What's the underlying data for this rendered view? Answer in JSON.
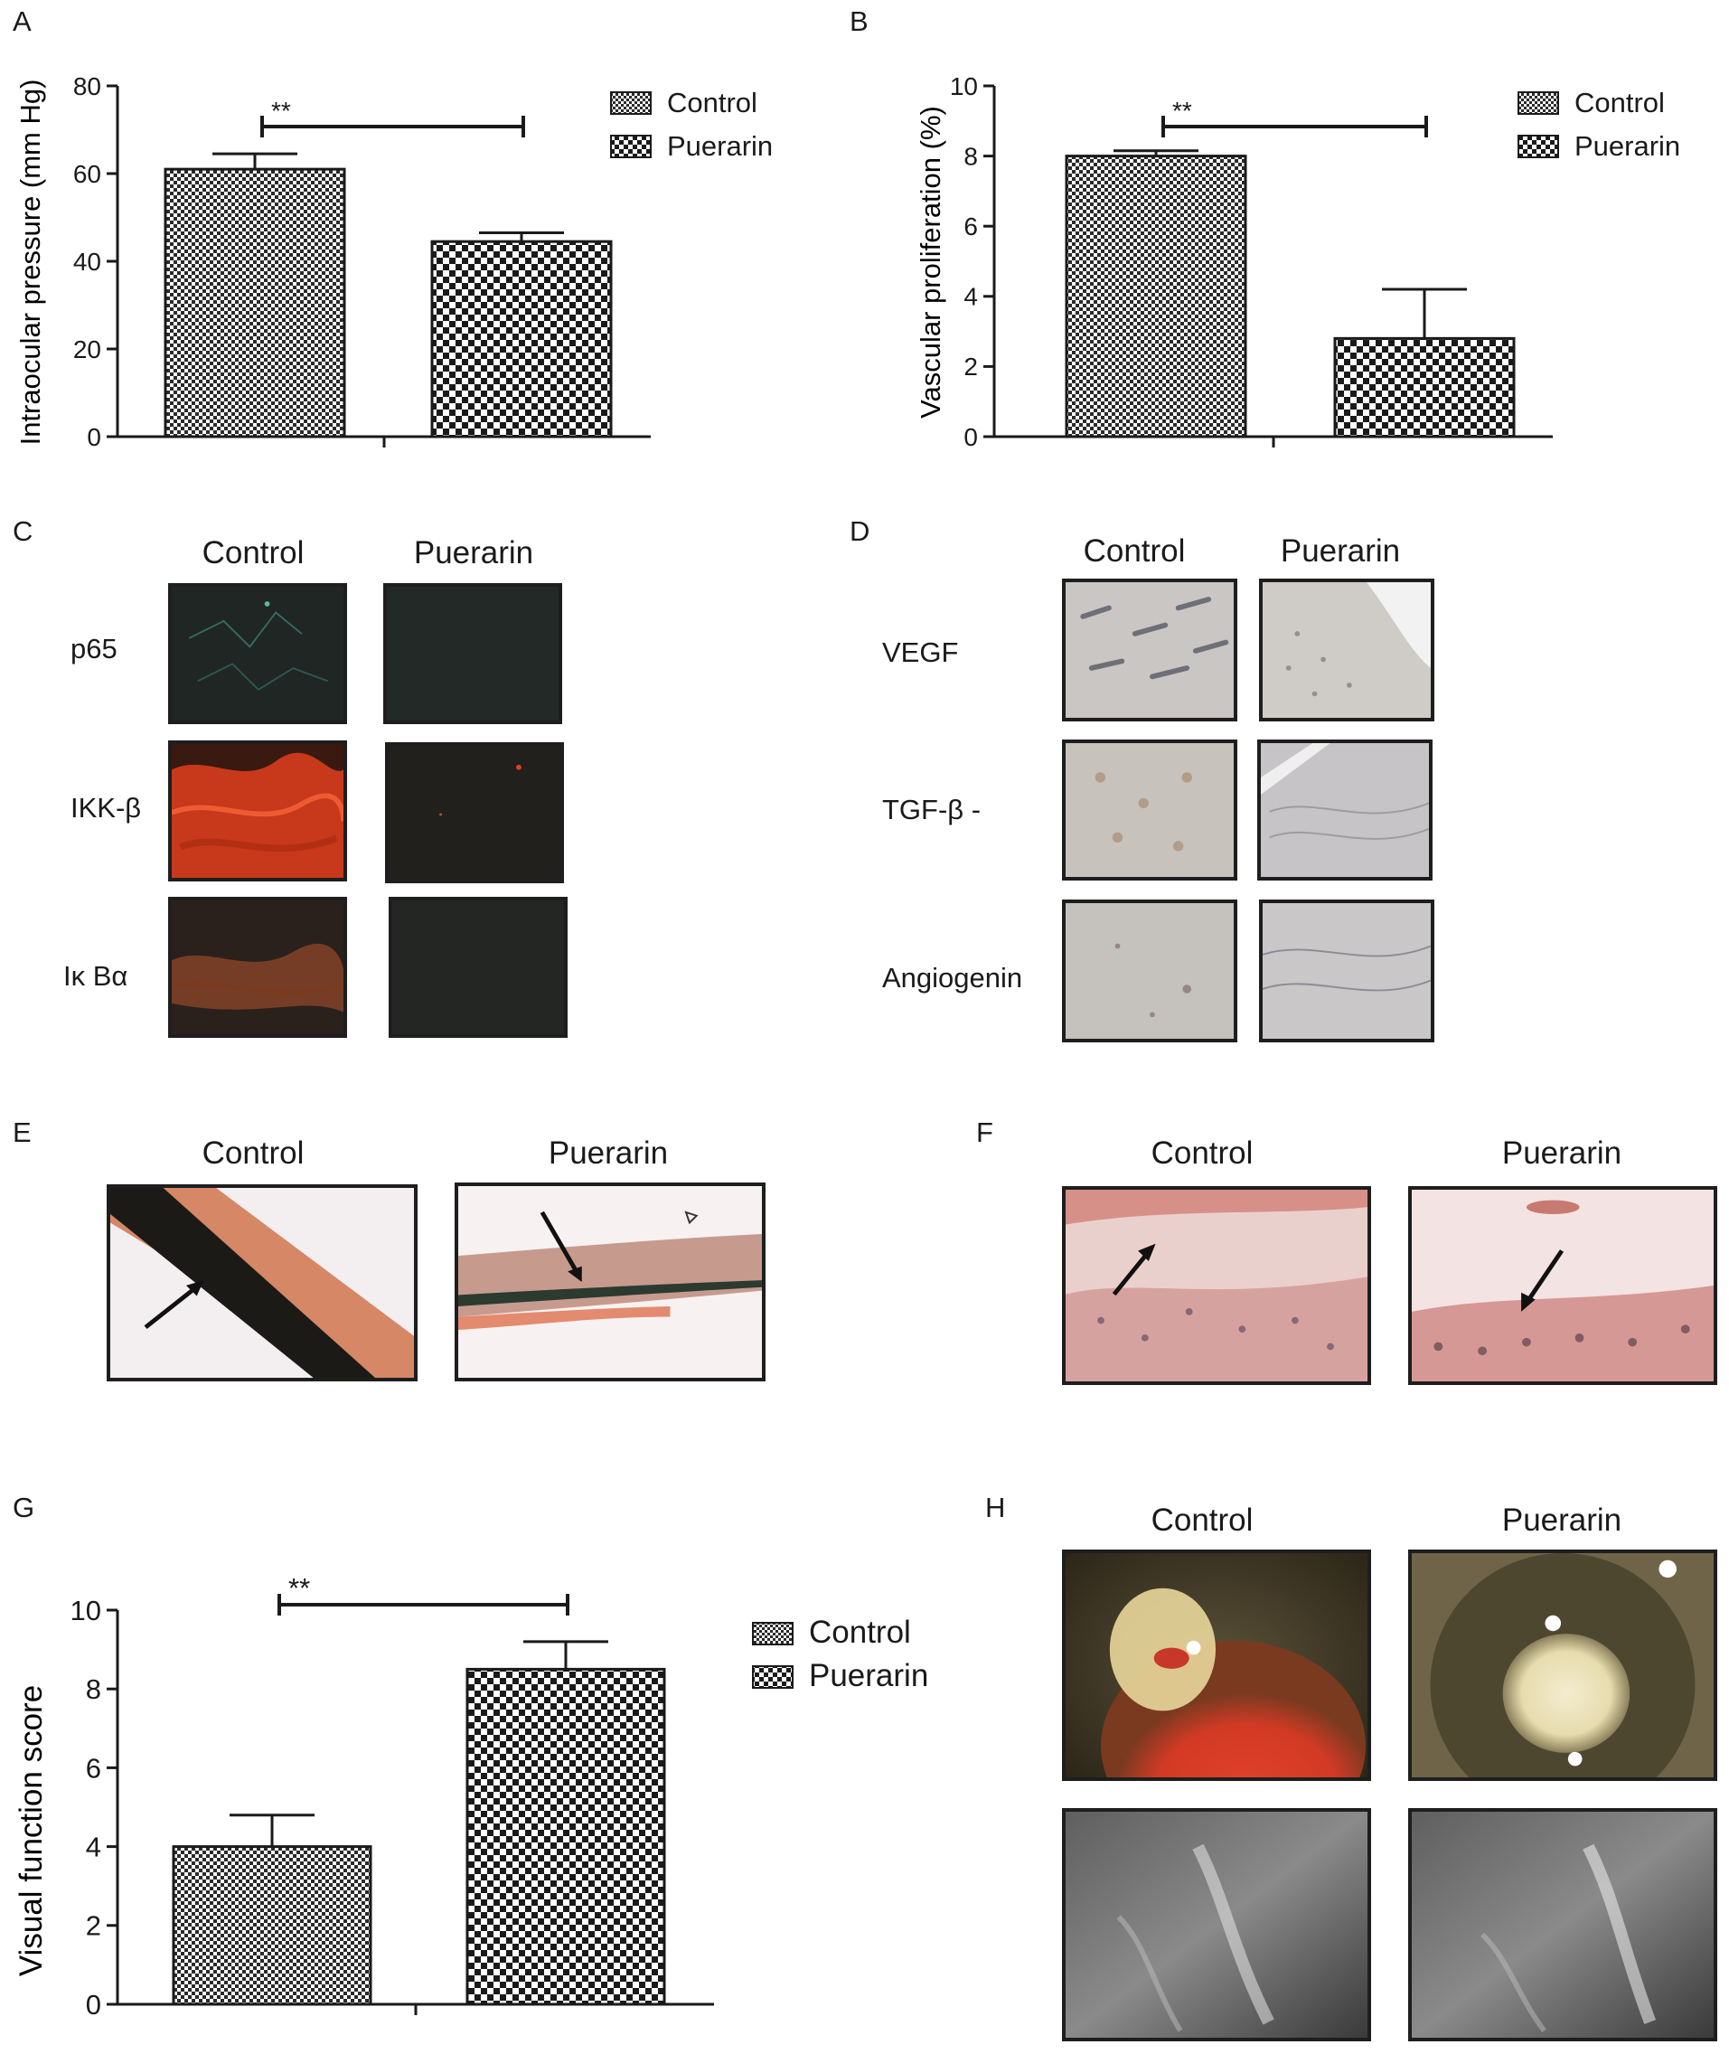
{
  "panels": {
    "A": {
      "letter": "A"
    },
    "B": {
      "letter": "B"
    },
    "C": {
      "letter": "C",
      "columns": [
        "Control",
        "Puerarin"
      ],
      "rows": [
        "p65",
        "IKK-β",
        "Iκ Bα"
      ]
    },
    "D": {
      "letter": "D",
      "columns": [
        "Control",
        "Puerarin"
      ],
      "rows": [
        "VEGF",
        "TGF-β -",
        "Angiogenin"
      ]
    },
    "E": {
      "letter": "E",
      "columns": [
        "Control",
        "Puerarin"
      ]
    },
    "F": {
      "letter": "F",
      "columns": [
        "Control",
        "Puerarin"
      ]
    },
    "G": {
      "letter": "G"
    },
    "H": {
      "letter": "H",
      "columns": [
        "Control",
        "Puerarin"
      ]
    }
  },
  "colors": {
    "frame": "#1e1e1e",
    "bar_outline": "#1a1a1a",
    "p65_stain": "#3f8a77",
    "ikk_stain": "#e0401c",
    "ikba_stain": "#b5562f"
  },
  "chart_data": [
    {
      "panel": "A",
      "type": "bar",
      "categories": [
        "Control",
        "Puerarin"
      ],
      "values": [
        61,
        44.5
      ],
      "error": [
        3.5,
        2
      ],
      "ylabel": "Intraocular pressure (mm Hg)",
      "xlabel": "",
      "ylim": [
        0,
        80
      ],
      "yticks": [
        0,
        20,
        40,
        60,
        80
      ],
      "significance": "**",
      "legend": [
        "Control",
        "Puerarin"
      ],
      "legend_position": "top-right"
    },
    {
      "panel": "B",
      "type": "bar",
      "categories": [
        "Control",
        "Puerarin"
      ],
      "values": [
        8,
        2.8
      ],
      "error": [
        0.15,
        1.4
      ],
      "ylabel": "Vascular proliferation (%)",
      "xlabel": "",
      "ylim": [
        0,
        10
      ],
      "yticks": [
        0,
        2,
        4,
        6,
        8,
        10
      ],
      "significance": "**",
      "legend": [
        "Control",
        "Puerarin"
      ],
      "legend_position": "top-right"
    },
    {
      "panel": "G",
      "type": "bar",
      "categories": [
        "Control",
        "Puerarin"
      ],
      "values": [
        4,
        8.5
      ],
      "error": [
        0.8,
        0.7
      ],
      "ylabel": "Visual function score",
      "xlabel": "",
      "ylim": [
        0,
        10
      ],
      "yticks": [
        0,
        2,
        4,
        6,
        8,
        10
      ],
      "significance": "**",
      "legend": [
        "Control",
        "Puerarin"
      ],
      "legend_position": "top-right"
    }
  ]
}
